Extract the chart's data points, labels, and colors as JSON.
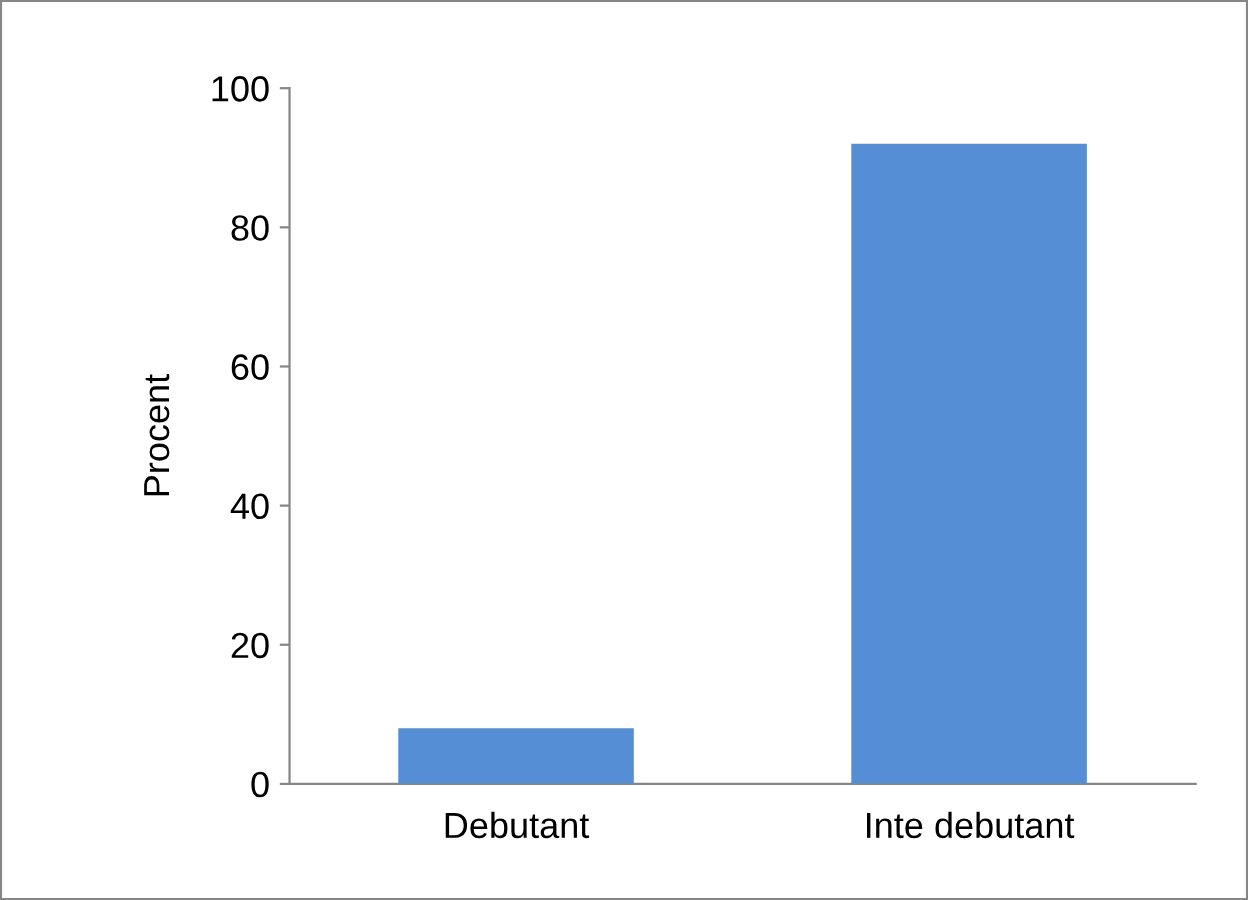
{
  "chart_data": {
    "type": "bar",
    "ylabel": "Procent",
    "categories": [
      "Debutant",
      "Inte debutant"
    ],
    "values": [
      8,
      92
    ],
    "color": "#558ed5",
    "ylim": [
      0,
      100
    ],
    "yticks": [
      0,
      20,
      40,
      60,
      80,
      100
    ],
    "grid": false,
    "legend": false
  }
}
